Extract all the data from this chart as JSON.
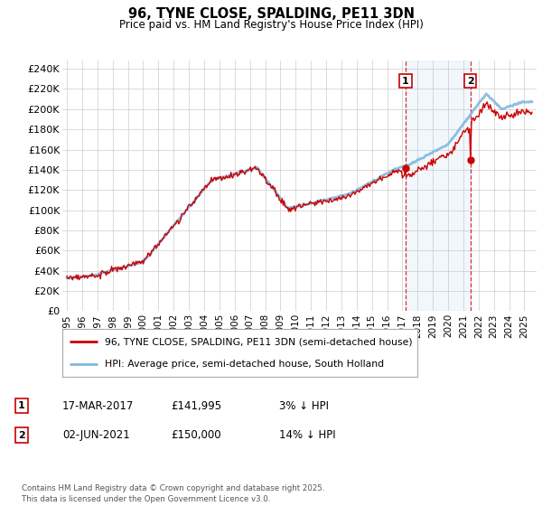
{
  "title": "96, TYNE CLOSE, SPALDING, PE11 3DN",
  "subtitle": "Price paid vs. HM Land Registry's House Price Index (HPI)",
  "ylabel_ticks": [
    "£0",
    "£20K",
    "£40K",
    "£60K",
    "£80K",
    "£100K",
    "£120K",
    "£140K",
    "£160K",
    "£180K",
    "£200K",
    "£220K",
    "£240K"
  ],
  "ytick_values": [
    0,
    20000,
    40000,
    60000,
    80000,
    100000,
    120000,
    140000,
    160000,
    180000,
    200000,
    220000,
    240000
  ],
  "ylim": [
    0,
    248000
  ],
  "xticks": [
    1995,
    1996,
    1997,
    1998,
    1999,
    2000,
    2001,
    2002,
    2003,
    2004,
    2005,
    2006,
    2007,
    2008,
    2009,
    2010,
    2011,
    2012,
    2013,
    2014,
    2015,
    2016,
    2017,
    2018,
    2019,
    2020,
    2021,
    2022,
    2023,
    2024,
    2025
  ],
  "hpi_color": "#7fb9e0",
  "price_color": "#cc0000",
  "vline_color": "#cc0000",
  "t1_x": 2017.21,
  "t2_x": 2021.46,
  "t1_y": 141995,
  "t2_y": 150000,
  "legend_line1": "96, TYNE CLOSE, SPALDING, PE11 3DN (semi-detached house)",
  "legend_line2": "HPI: Average price, semi-detached house, South Holland",
  "annotation1_date": "17-MAR-2017",
  "annotation1_price": "£141,995",
  "annotation1_hpi": "3% ↓ HPI",
  "annotation2_date": "02-JUN-2021",
  "annotation2_price": "£150,000",
  "annotation2_hpi": "14% ↓ HPI",
  "footnote": "Contains HM Land Registry data © Crown copyright and database right 2025.\nThis data is licensed under the Open Government Licence v3.0.",
  "background_color": "#ffffff",
  "grid_color": "#cccccc"
}
